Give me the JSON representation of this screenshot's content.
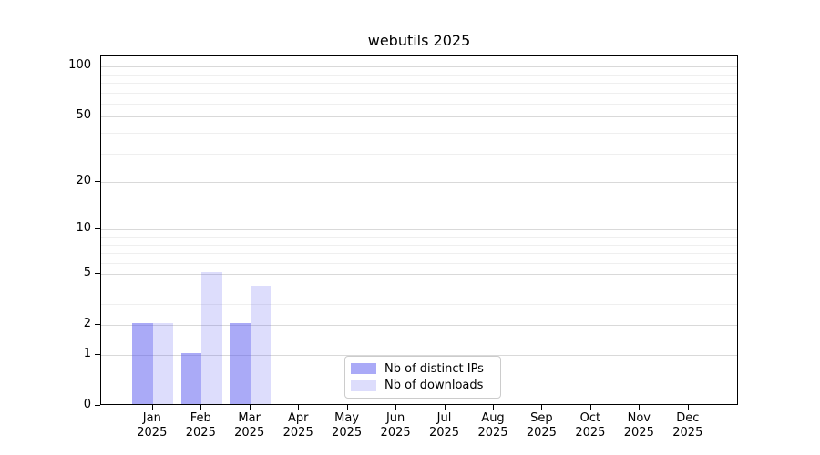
{
  "chart_data": {
    "type": "bar",
    "title": "webutils 2025",
    "categories": [
      "Jan",
      "Feb",
      "Mar",
      "Apr",
      "May",
      "Jun",
      "Jul",
      "Aug",
      "Sep",
      "Oct",
      "Nov",
      "Dec"
    ],
    "category_year": "2025",
    "series": [
      {
        "key": "distinct-ips",
        "name": "Nb of distinct IPs",
        "color": "rgba(85,85,240,0.5)",
        "values": [
          2,
          1,
          2,
          0,
          0,
          0,
          0,
          0,
          0,
          0,
          0,
          0
        ]
      },
      {
        "key": "downloads",
        "name": "Nb of downloads",
        "color": "rgba(85,85,240,0.2)",
        "values": [
          2,
          5,
          4,
          0,
          0,
          0,
          0,
          0,
          0,
          0,
          0,
          0
        ]
      }
    ],
    "xlabel": "",
    "ylabel": "",
    "y_axis": {
      "scale": "log10(value+1)",
      "major_ticks": [
        0,
        1,
        2,
        5,
        10,
        20,
        50,
        100
      ],
      "minor_ticks": [
        3,
        4,
        6,
        7,
        8,
        9,
        30,
        40,
        60,
        70,
        80,
        90
      ],
      "range_max": 116
    },
    "grid": {
      "enabled": true,
      "major_color": "#d9d9d9",
      "minor_color": "#efefef"
    },
    "legend": {
      "position": "lower-center-inside",
      "entries": [
        "Nb of distinct IPs",
        "Nb of downloads"
      ]
    }
  }
}
